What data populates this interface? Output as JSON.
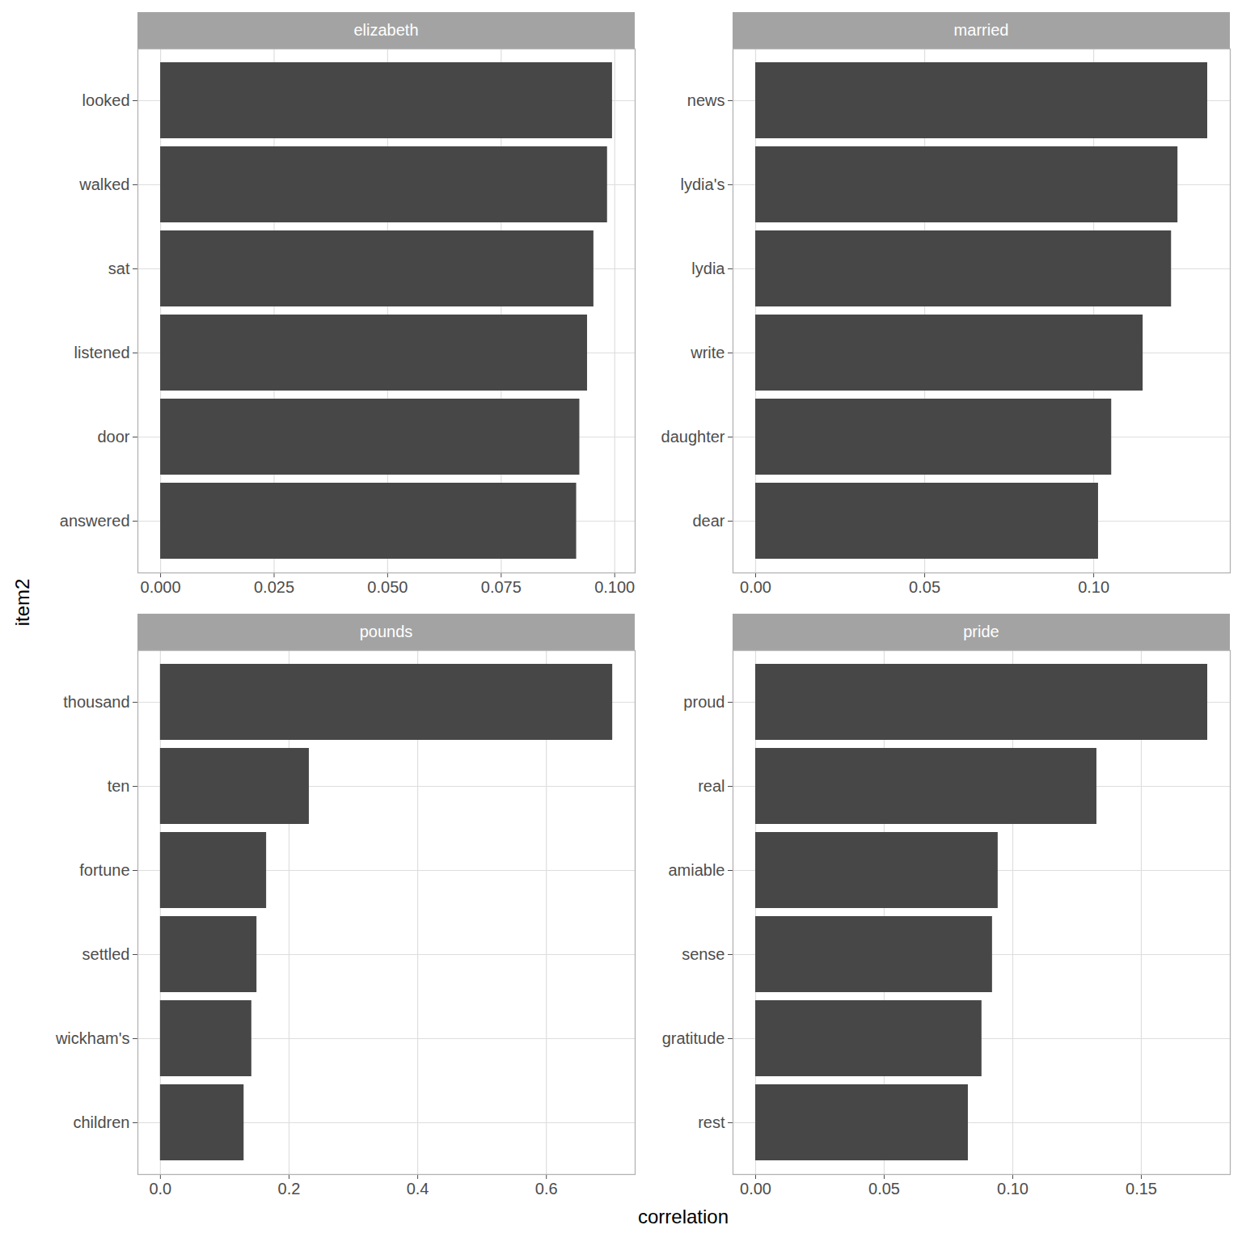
{
  "chart_data": [
    {
      "type": "bar",
      "title": "elizabeth",
      "orientation": "horizontal",
      "grid": true,
      "color": "#474747",
      "categories": [
        "looked",
        "walked",
        "sat",
        "listened",
        "door",
        "answered"
      ],
      "values": [
        0.0995,
        0.0984,
        0.0954,
        0.094,
        0.0923,
        0.0916
      ],
      "xlim": [
        -0.005,
        0.1045
      ],
      "xticks": [
        {
          "value": 0,
          "label": "0.000"
        },
        {
          "value": 0.025,
          "label": "0.025"
        },
        {
          "value": 0.05,
          "label": "0.050"
        },
        {
          "value": 0.075,
          "label": "0.075"
        },
        {
          "value": 0.1,
          "label": "0.100"
        }
      ]
    },
    {
      "type": "bar",
      "title": "married",
      "orientation": "horizontal",
      "grid": true,
      "color": "#474747",
      "categories": [
        "news",
        "lydia's",
        "lydia",
        "write",
        "daughter",
        "dear"
      ],
      "values": [
        0.1337,
        0.1249,
        0.123,
        0.1146,
        0.1053,
        0.1014
      ],
      "xlim": [
        -0.0067,
        0.1404
      ],
      "xticks": [
        {
          "value": 0,
          "label": "0.00"
        },
        {
          "value": 0.05,
          "label": "0.05"
        },
        {
          "value": 0.1,
          "label": "0.10"
        }
      ]
    },
    {
      "type": "bar",
      "title": "pounds",
      "orientation": "horizontal",
      "grid": true,
      "color": "#474747",
      "categories": [
        "thousand",
        "ten",
        "fortune",
        "settled",
        "wickham's",
        "children"
      ],
      "values": [
        0.703,
        0.2314,
        0.165,
        0.15,
        0.142,
        0.13
      ],
      "xlim": [
        -0.035,
        0.738
      ],
      "xticks": [
        {
          "value": 0,
          "label": "0.0"
        },
        {
          "value": 0.2,
          "label": "0.2"
        },
        {
          "value": 0.4,
          "label": "0.4"
        },
        {
          "value": 0.6,
          "label": "0.6"
        }
      ]
    },
    {
      "type": "bar",
      "title": "pride",
      "orientation": "horizontal",
      "grid": true,
      "color": "#474747",
      "categories": [
        "proud",
        "real",
        "amiable",
        "sense",
        "gratitude",
        "rest"
      ],
      "values": [
        0.1758,
        0.1327,
        0.0943,
        0.0921,
        0.088,
        0.0827
      ],
      "xlim": [
        -0.0088,
        0.1846
      ],
      "xticks": [
        {
          "value": 0,
          "label": "0.00"
        },
        {
          "value": 0.05,
          "label": "0.05"
        },
        {
          "value": 0.1,
          "label": "0.10"
        },
        {
          "value": 0.15,
          "label": "0.15"
        }
      ]
    }
  ],
  "xlabel": "correlation",
  "ylabel": "item2"
}
